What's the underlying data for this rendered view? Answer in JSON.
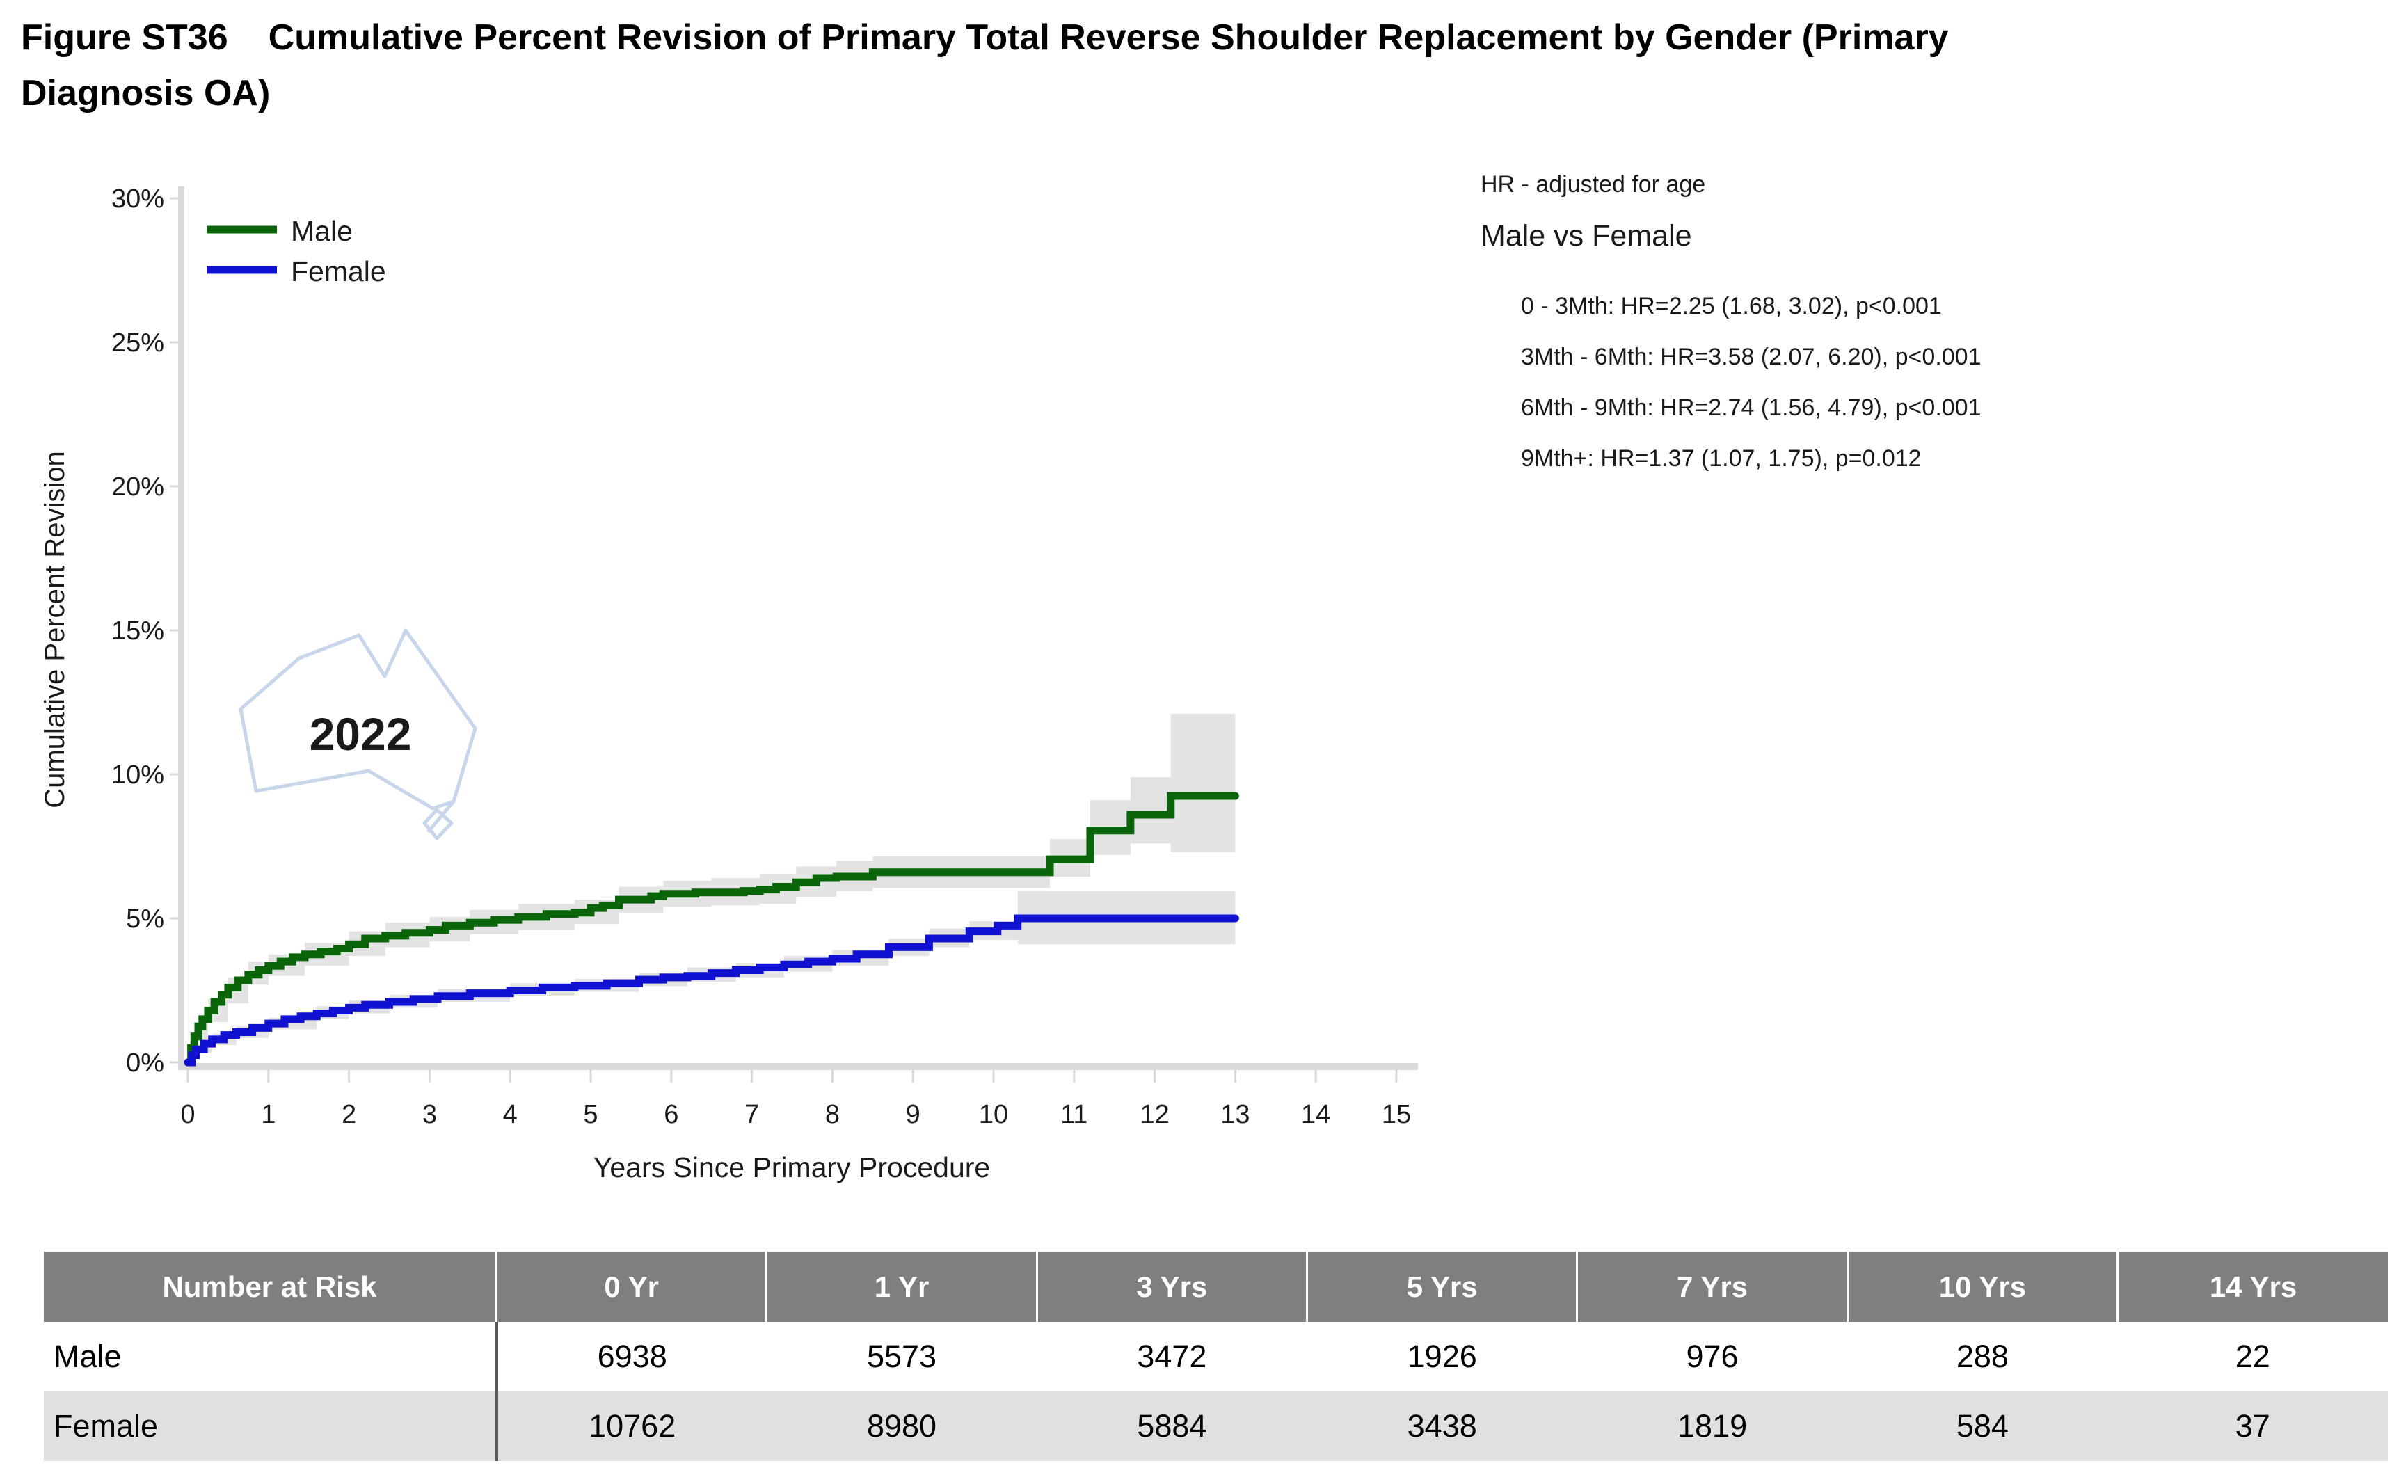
{
  "title": {
    "prefix": "Figure ST36",
    "line1": "Cumulative Percent Revision of Primary Total Reverse Shoulder Replacement by Gender (Primary",
    "line2": "Diagnosis OA)"
  },
  "colors": {
    "male": "#0a640a",
    "female": "#1111d1",
    "ci_band": "#e3e3e3",
    "axis": "#d9d9d9",
    "watermark_outline": "#c7d6ea",
    "watermark_text": "#b3c8e4",
    "table_header_bg": "#7f7f7f",
    "table_alt_row": "#e0e0e0",
    "table_divider": "#595959"
  },
  "chart_data": {
    "type": "step-line",
    "title": "Cumulative Percent Revision of Primary Total Reverse Shoulder Replacement by Gender (Primary Diagnosis OA)",
    "xlabel": "Years Since Primary Procedure",
    "ylabel": "Cumulative Percent Revision",
    "xlim": [
      0,
      15
    ],
    "ylim": [
      0,
      30
    ],
    "grid": false,
    "legend_position": "top-left",
    "watermark": "2022",
    "x_ticks": [
      {
        "v": 0,
        "label": "0"
      },
      {
        "v": 1,
        "label": "1"
      },
      {
        "v": 2,
        "label": "2"
      },
      {
        "v": 3,
        "label": "3"
      },
      {
        "v": 4,
        "label": "4"
      },
      {
        "v": 5,
        "label": "5"
      },
      {
        "v": 6,
        "label": "6"
      },
      {
        "v": 7,
        "label": "7"
      },
      {
        "v": 8,
        "label": "8"
      },
      {
        "v": 9,
        "label": "9"
      },
      {
        "v": 10,
        "label": "10"
      },
      {
        "v": 11,
        "label": "11"
      },
      {
        "v": 12,
        "label": "12"
      },
      {
        "v": 13,
        "label": "13"
      },
      {
        "v": 14,
        "label": "14"
      },
      {
        "v": 15,
        "label": "15"
      }
    ],
    "y_ticks": [
      {
        "v": 0,
        "label": "0%"
      },
      {
        "v": 5,
        "label": "5%"
      },
      {
        "v": 10,
        "label": "10%"
      },
      {
        "v": 15,
        "label": "15%"
      },
      {
        "v": 20,
        "label": "20%"
      },
      {
        "v": 25,
        "label": "25%"
      },
      {
        "v": 30,
        "label": "30%"
      }
    ],
    "series": [
      {
        "name": "Male",
        "color": "#0a640a",
        "steps": [
          [
            0,
            0
          ],
          [
            0.04,
            0.5
          ],
          [
            0.08,
            0.9
          ],
          [
            0.13,
            1.25
          ],
          [
            0.18,
            1.5
          ],
          [
            0.25,
            1.8
          ],
          [
            0.33,
            2.1
          ],
          [
            0.42,
            2.35
          ],
          [
            0.5,
            2.6
          ],
          [
            0.62,
            2.85
          ],
          [
            0.75,
            3.05
          ],
          [
            0.88,
            3.2
          ],
          [
            1,
            3.35
          ],
          [
            1.15,
            3.5
          ],
          [
            1.3,
            3.65
          ],
          [
            1.45,
            3.75
          ],
          [
            1.65,
            3.85
          ],
          [
            1.85,
            3.95
          ],
          [
            2,
            4.1
          ],
          [
            2.2,
            4.3
          ],
          [
            2.45,
            4.4
          ],
          [
            2.7,
            4.5
          ],
          [
            3,
            4.6
          ],
          [
            3.2,
            4.75
          ],
          [
            3.5,
            4.85
          ],
          [
            3.8,
            4.95
          ],
          [
            4.1,
            5.05
          ],
          [
            4.45,
            5.15
          ],
          [
            4.8,
            5.2
          ],
          [
            5,
            5.36
          ],
          [
            5.15,
            5.45
          ],
          [
            5.35,
            5.65
          ],
          [
            5.75,
            5.77
          ],
          [
            5.9,
            5.85
          ],
          [
            6.3,
            5.9
          ],
          [
            6.9,
            5.95
          ],
          [
            7.1,
            6
          ],
          [
            7.3,
            6.1
          ],
          [
            7.55,
            6.25
          ],
          [
            7.8,
            6.4
          ],
          [
            8.05,
            6.45
          ],
          [
            8.5,
            6.6
          ],
          [
            10.7,
            7.05
          ],
          [
            11.2,
            8.05
          ],
          [
            11.7,
            8.6
          ],
          [
            12.2,
            9.25
          ],
          [
            13,
            9.25
          ]
        ],
        "ci": [
          [
            0,
            0,
            0
          ],
          [
            0.12,
            0.8,
            1.6
          ],
          [
            0.25,
            1.4,
            2.2
          ],
          [
            0.5,
            2.05,
            2.95
          ],
          [
            0.75,
            2.7,
            3.5
          ],
          [
            1,
            3,
            3.75
          ],
          [
            1.45,
            3.35,
            4.15
          ],
          [
            2,
            3.7,
            4.55
          ],
          [
            2.45,
            4,
            4.85
          ],
          [
            3,
            4.2,
            5.05
          ],
          [
            3.5,
            4.45,
            5.3
          ],
          [
            4.1,
            4.6,
            5.5
          ],
          [
            4.8,
            4.8,
            5.65
          ],
          [
            5.35,
            5.2,
            6.1
          ],
          [
            5.9,
            5.4,
            6.3
          ],
          [
            6.5,
            5.45,
            6.4
          ],
          [
            7.1,
            5.5,
            6.55
          ],
          [
            7.55,
            5.75,
            6.8
          ],
          [
            8.05,
            5.95,
            7
          ],
          [
            8.5,
            6.05,
            7.15
          ],
          [
            10.7,
            6.45,
            7.75
          ],
          [
            11.2,
            7.2,
            9.1
          ],
          [
            11.7,
            7.6,
            9.9
          ],
          [
            12.2,
            7.3,
            12.1
          ],
          [
            13,
            7.3,
            12.1
          ]
        ]
      },
      {
        "name": "Female",
        "color": "#1111d1",
        "steps": [
          [
            0,
            0
          ],
          [
            0.05,
            0.25
          ],
          [
            0.1,
            0.45
          ],
          [
            0.2,
            0.65
          ],
          [
            0.3,
            0.8
          ],
          [
            0.45,
            0.95
          ],
          [
            0.6,
            1.05
          ],
          [
            0.8,
            1.2
          ],
          [
            1,
            1.35
          ],
          [
            1.2,
            1.5
          ],
          [
            1.4,
            1.6
          ],
          [
            1.6,
            1.7
          ],
          [
            1.8,
            1.8
          ],
          [
            2,
            1.9
          ],
          [
            2.2,
            2
          ],
          [
            2.5,
            2.1
          ],
          [
            2.8,
            2.2
          ],
          [
            3.1,
            2.3
          ],
          [
            3.5,
            2.4
          ],
          [
            4,
            2.5
          ],
          [
            4.4,
            2.6
          ],
          [
            4.8,
            2.66
          ],
          [
            5.2,
            2.75
          ],
          [
            5.6,
            2.87
          ],
          [
            5.9,
            2.95
          ],
          [
            6.2,
            3
          ],
          [
            6.5,
            3.1
          ],
          [
            6.8,
            3.2
          ],
          [
            7.1,
            3.3
          ],
          [
            7.4,
            3.4
          ],
          [
            7.7,
            3.5
          ],
          [
            8,
            3.6
          ],
          [
            8.3,
            3.75
          ],
          [
            8.7,
            4
          ],
          [
            9.2,
            4.3
          ],
          [
            9.7,
            4.55
          ],
          [
            10.05,
            4.75
          ],
          [
            10.3,
            5
          ],
          [
            13,
            5
          ]
        ],
        "ci": [
          [
            0,
            0,
            0
          ],
          [
            0.12,
            0.35,
            0.65
          ],
          [
            0.3,
            0.6,
            1
          ],
          [
            0.6,
            0.85,
            1.25
          ],
          [
            1,
            1.15,
            1.55
          ],
          [
            1.6,
            1.5,
            1.95
          ],
          [
            2,
            1.7,
            2.15
          ],
          [
            2.5,
            1.9,
            2.35
          ],
          [
            3.1,
            2.1,
            2.55
          ],
          [
            4,
            2.3,
            2.75
          ],
          [
            4.8,
            2.45,
            2.9
          ],
          [
            5.6,
            2.65,
            3.1
          ],
          [
            6.2,
            2.8,
            3.3
          ],
          [
            6.8,
            2.95,
            3.45
          ],
          [
            7.4,
            3.15,
            3.7
          ],
          [
            8,
            3.35,
            3.9
          ],
          [
            8.7,
            3.7,
            4.3
          ],
          [
            9.2,
            4,
            4.65
          ],
          [
            9.7,
            4.25,
            4.9
          ],
          [
            10.3,
            4.1,
            5.95
          ],
          [
            13,
            4.1,
            5.95
          ]
        ]
      }
    ]
  },
  "hr_annotation": {
    "title": "HR - adjusted for age",
    "comparison": "Male vs Female",
    "lines": [
      "0 - 3Mth: HR=2.25 (1.68, 3.02), p<0.001",
      "3Mth - 6Mth: HR=3.58 (2.07, 6.20), p<0.001",
      "6Mth - 9Mth: HR=2.74 (1.56, 4.79), p<0.001",
      "9Mth+: HR=1.37 (1.07, 1.75), p=0.012"
    ]
  },
  "risk_table": {
    "header": [
      "Number at Risk",
      "0 Yr",
      "1 Yr",
      "3 Yrs",
      "5 Yrs",
      "7 Yrs",
      "10 Yrs",
      "14 Yrs"
    ],
    "rows": [
      {
        "label": "Male",
        "values": [
          6938,
          5573,
          3472,
          1926,
          976,
          288,
          22
        ]
      },
      {
        "label": "Female",
        "values": [
          10762,
          8980,
          5884,
          3438,
          1819,
          584,
          37
        ]
      }
    ]
  }
}
